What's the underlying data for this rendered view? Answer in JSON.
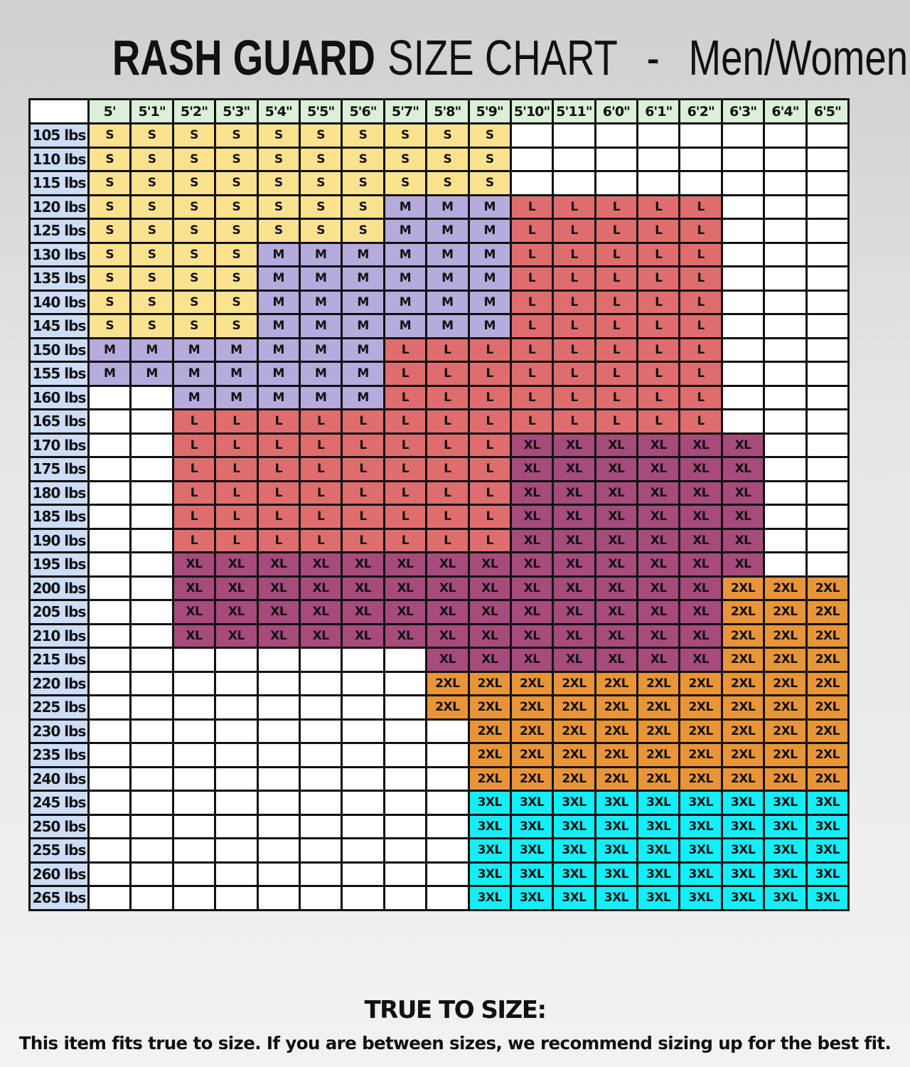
{
  "title": {
    "bold": "RASH GUARD",
    "regular": "SIZE CHART",
    "separator": "-",
    "audience": "Men/Women"
  },
  "footer": {
    "heading": "TRUE TO SIZE:",
    "text": "This item fits true to size. If you are between sizes, we recommend sizing up for the best fit."
  },
  "chart_data": {
    "type": "table",
    "title": "RASH GUARD SIZE CHART - Men/Women",
    "corner_label": "",
    "colors": {
      "S": "#fbe28f",
      "M": "#b5abdc",
      "L": "#e06d6d",
      "XL": "#a64b7b",
      "2XL": "#e8953a",
      "3XL": "#13eef8",
      "blank": "#ffffff",
      "height_header": "#dcefd8",
      "weight_header": "#cddcf7"
    },
    "heights": [
      "5'",
      "5'1\"",
      "5'2\"",
      "5'3\"",
      "5'4\"",
      "5'5\"",
      "5'6\"",
      "5'7\"",
      "5'8\"",
      "5'9\"",
      "5'10\"",
      "5'11\"",
      "6'0\"",
      "6'1\"",
      "6'2\"",
      "6'3\"",
      "6'4\"",
      "6'5\""
    ],
    "rows": [
      {
        "weight": "105 lbs",
        "sizes": [
          "S",
          "S",
          "S",
          "S",
          "S",
          "S",
          "S",
          "S",
          "S",
          "S",
          "",
          "",
          "",
          "",
          "",
          "",
          "",
          ""
        ]
      },
      {
        "weight": "110 lbs",
        "sizes": [
          "S",
          "S",
          "S",
          "S",
          "S",
          "S",
          "S",
          "S",
          "S",
          "S",
          "",
          "",
          "",
          "",
          "",
          "",
          "",
          ""
        ]
      },
      {
        "weight": "115 lbs",
        "sizes": [
          "S",
          "S",
          "S",
          "S",
          "S",
          "S",
          "S",
          "S",
          "S",
          "S",
          "",
          "",
          "",
          "",
          "",
          "",
          "",
          ""
        ]
      },
      {
        "weight": "120 lbs",
        "sizes": [
          "S",
          "S",
          "S",
          "S",
          "S",
          "S",
          "S",
          "M",
          "M",
          "M",
          "L",
          "L",
          "L",
          "L",
          "L",
          "",
          "",
          ""
        ]
      },
      {
        "weight": "125 lbs",
        "sizes": [
          "S",
          "S",
          "S",
          "S",
          "S",
          "S",
          "S",
          "M",
          "M",
          "M",
          "L",
          "L",
          "L",
          "L",
          "L",
          "",
          "",
          ""
        ]
      },
      {
        "weight": "130 lbs",
        "sizes": [
          "S",
          "S",
          "S",
          "S",
          "M",
          "M",
          "M",
          "M",
          "M",
          "M",
          "L",
          "L",
          "L",
          "L",
          "L",
          "",
          "",
          ""
        ]
      },
      {
        "weight": "135 lbs",
        "sizes": [
          "S",
          "S",
          "S",
          "S",
          "M",
          "M",
          "M",
          "M",
          "M",
          "M",
          "L",
          "L",
          "L",
          "L",
          "L",
          "",
          "",
          ""
        ]
      },
      {
        "weight": "140 lbs",
        "sizes": [
          "S",
          "S",
          "S",
          "S",
          "M",
          "M",
          "M",
          "M",
          "M",
          "M",
          "L",
          "L",
          "L",
          "L",
          "L",
          "",
          "",
          ""
        ]
      },
      {
        "weight": "145 lbs",
        "sizes": [
          "S",
          "S",
          "S",
          "S",
          "M",
          "M",
          "M",
          "M",
          "M",
          "M",
          "L",
          "L",
          "L",
          "L",
          "L",
          "",
          "",
          ""
        ]
      },
      {
        "weight": "150 lbs",
        "sizes": [
          "M",
          "M",
          "M",
          "M",
          "M",
          "M",
          "M",
          "L",
          "L",
          "L",
          "L",
          "L",
          "L",
          "L",
          "L",
          "",
          "",
          ""
        ]
      },
      {
        "weight": "155 lbs",
        "sizes": [
          "M",
          "M",
          "M",
          "M",
          "M",
          "M",
          "M",
          "L",
          "L",
          "L",
          "L",
          "L",
          "L",
          "L",
          "L",
          "",
          "",
          ""
        ]
      },
      {
        "weight": "160 lbs",
        "sizes": [
          "",
          "",
          "M",
          "M",
          "M",
          "M",
          "M",
          "L",
          "L",
          "L",
          "L",
          "L",
          "L",
          "L",
          "L",
          "",
          "",
          ""
        ]
      },
      {
        "weight": "165 lbs",
        "sizes": [
          "",
          "",
          "L",
          "L",
          "L",
          "L",
          "L",
          "L",
          "L",
          "L",
          "L",
          "L",
          "L",
          "L",
          "L",
          "",
          "",
          ""
        ]
      },
      {
        "weight": "170 lbs",
        "sizes": [
          "",
          "",
          "L",
          "L",
          "L",
          "L",
          "L",
          "L",
          "L",
          "L",
          "XL",
          "XL",
          "XL",
          "XL",
          "XL",
          "XL",
          "",
          ""
        ]
      },
      {
        "weight": "175 lbs",
        "sizes": [
          "",
          "",
          "L",
          "L",
          "L",
          "L",
          "L",
          "L",
          "L",
          "L",
          "XL",
          "XL",
          "XL",
          "XL",
          "XL",
          "XL",
          "",
          ""
        ]
      },
      {
        "weight": "180 lbs",
        "sizes": [
          "",
          "",
          "L",
          "L",
          "L",
          "L",
          "L",
          "L",
          "L",
          "L",
          "XL",
          "XL",
          "XL",
          "XL",
          "XL",
          "XL",
          "",
          ""
        ]
      },
      {
        "weight": "185 lbs",
        "sizes": [
          "",
          "",
          "L",
          "L",
          "L",
          "L",
          "L",
          "L",
          "L",
          "L",
          "XL",
          "XL",
          "XL",
          "XL",
          "XL",
          "XL",
          "",
          ""
        ]
      },
      {
        "weight": "190 lbs",
        "sizes": [
          "",
          "",
          "L",
          "L",
          "L",
          "L",
          "L",
          "L",
          "L",
          "L",
          "XL",
          "XL",
          "XL",
          "XL",
          "XL",
          "XL",
          "",
          ""
        ]
      },
      {
        "weight": "195 lbs",
        "sizes": [
          "",
          "",
          "XL",
          "XL",
          "XL",
          "XL",
          "XL",
          "XL",
          "XL",
          "XL",
          "XL",
          "XL",
          "XL",
          "XL",
          "XL",
          "XL",
          "",
          ""
        ]
      },
      {
        "weight": "200 lbs",
        "sizes": [
          "",
          "",
          "XL",
          "XL",
          "XL",
          "XL",
          "XL",
          "XL",
          "XL",
          "XL",
          "XL",
          "XL",
          "XL",
          "XL",
          "XL",
          "2XL",
          "2XL",
          "2XL"
        ]
      },
      {
        "weight": "205 lbs",
        "sizes": [
          "",
          "",
          "XL",
          "XL",
          "XL",
          "XL",
          "XL",
          "XL",
          "XL",
          "XL",
          "XL",
          "XL",
          "XL",
          "XL",
          "XL",
          "2XL",
          "2XL",
          "2XL"
        ]
      },
      {
        "weight": "210 lbs",
        "sizes": [
          "",
          "",
          "XL",
          "XL",
          "XL",
          "XL",
          "XL",
          "XL",
          "XL",
          "XL",
          "XL",
          "XL",
          "XL",
          "XL",
          "XL",
          "2XL",
          "2XL",
          "2XL"
        ]
      },
      {
        "weight": "215 lbs",
        "sizes": [
          "",
          "",
          "",
          "",
          "",
          "",
          "",
          "",
          "XL",
          "XL",
          "XL",
          "XL",
          "XL",
          "XL",
          "XL",
          "2XL",
          "2XL",
          "2XL"
        ]
      },
      {
        "weight": "220 lbs",
        "sizes": [
          "",
          "",
          "",
          "",
          "",
          "",
          "",
          "",
          "2XL",
          "2XL",
          "2XL",
          "2XL",
          "2XL",
          "2XL",
          "2XL",
          "2XL",
          "2XL",
          "2XL"
        ]
      },
      {
        "weight": "225 lbs",
        "sizes": [
          "",
          "",
          "",
          "",
          "",
          "",
          "",
          "",
          "2XL",
          "2XL",
          "2XL",
          "2XL",
          "2XL",
          "2XL",
          "2XL",
          "2XL",
          "2XL",
          "2XL"
        ]
      },
      {
        "weight": "230 lbs",
        "sizes": [
          "",
          "",
          "",
          "",
          "",
          "",
          "",
          "",
          "",
          "2XL",
          "2XL",
          "2XL",
          "2XL",
          "2XL",
          "2XL",
          "2XL",
          "2XL",
          "2XL"
        ]
      },
      {
        "weight": "235 lbs",
        "sizes": [
          "",
          "",
          "",
          "",
          "",
          "",
          "",
          "",
          "",
          "2XL",
          "2XL",
          "2XL",
          "2XL",
          "2XL",
          "2XL",
          "2XL",
          "2XL",
          "2XL"
        ]
      },
      {
        "weight": "240 lbs",
        "sizes": [
          "",
          "",
          "",
          "",
          "",
          "",
          "",
          "",
          "",
          "2XL",
          "2XL",
          "2XL",
          "2XL",
          "2XL",
          "2XL",
          "2XL",
          "2XL",
          "2XL"
        ]
      },
      {
        "weight": "245 lbs",
        "sizes": [
          "",
          "",
          "",
          "",
          "",
          "",
          "",
          "",
          "",
          "3XL",
          "3XL",
          "3XL",
          "3XL",
          "3XL",
          "3XL",
          "3XL",
          "3XL",
          "3XL"
        ]
      },
      {
        "weight": "250 lbs",
        "sizes": [
          "",
          "",
          "",
          "",
          "",
          "",
          "",
          "",
          "",
          "3XL",
          "3XL",
          "3XL",
          "3XL",
          "3XL",
          "3XL",
          "3XL",
          "3XL",
          "3XL"
        ]
      },
      {
        "weight": "255 lbs",
        "sizes": [
          "",
          "",
          "",
          "",
          "",
          "",
          "",
          "",
          "",
          "3XL",
          "3XL",
          "3XL",
          "3XL",
          "3XL",
          "3XL",
          "3XL",
          "3XL",
          "3XL"
        ]
      },
      {
        "weight": "260 lbs",
        "sizes": [
          "",
          "",
          "",
          "",
          "",
          "",
          "",
          "",
          "",
          "3XL",
          "3XL",
          "3XL",
          "3XL",
          "3XL",
          "3XL",
          "3XL",
          "3XL",
          "3XL"
        ]
      },
      {
        "weight": "265 lbs",
        "sizes": [
          "",
          "",
          "",
          "",
          "",
          "",
          "",
          "",
          "",
          "3XL",
          "3XL",
          "3XL",
          "3XL",
          "3XL",
          "3XL",
          "3XL",
          "3XL",
          "3XL"
        ]
      }
    ]
  }
}
